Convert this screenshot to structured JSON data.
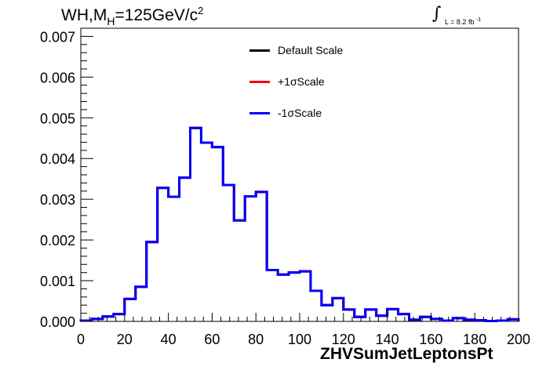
{
  "chart_data": {
    "type": "line",
    "title_main": "WH,M",
    "title_sub": "H",
    "title_mid": "=125GeV/c",
    "title_sup": "2",
    "lumi_text": "L = 8.2 fb",
    "lumi_sup": "-1",
    "xlabel": "ZHVSumJetLeptonsPt",
    "ylabel": "",
    "xlim": [
      0,
      200
    ],
    "ylim": [
      0,
      0.0072
    ],
    "xticks": [
      "0",
      "20",
      "40",
      "60",
      "80",
      "100",
      "120",
      "140",
      "160",
      "180",
      "200"
    ],
    "yticks": [
      "0.000",
      "0.001",
      "0.002",
      "0.003",
      "0.004",
      "0.005",
      "0.006",
      "0.007"
    ],
    "bin_edges": [
      0,
      5,
      10,
      15,
      20,
      25,
      30,
      35,
      40,
      45,
      50,
      55,
      60,
      65,
      70,
      75,
      80,
      85,
      90,
      95,
      100,
      105,
      110,
      115,
      120,
      125,
      130,
      135,
      140,
      145,
      150,
      155,
      160,
      165,
      170,
      175,
      180,
      185,
      190,
      195,
      200
    ],
    "series": [
      {
        "name": "Default Scale",
        "color": "#000000",
        "values": [
          2e-05,
          6e-05,
          0.00012,
          0.00018,
          0.00055,
          0.00085,
          0.00195,
          0.00328,
          0.00306,
          0.00353,
          0.00475,
          0.00439,
          0.00428,
          0.00335,
          0.00248,
          0.00307,
          0.00318,
          0.00126,
          0.00115,
          0.0012,
          0.00123,
          0.00075,
          0.0004,
          0.00057,
          0.00029,
          0.00011,
          0.00029,
          0.00014,
          0.0003,
          0.00018,
          4e-05,
          0.00011,
          6e-05,
          2e-05,
          8e-05,
          4e-05,
          3e-05,
          1e-05,
          2e-05,
          5e-05
        ]
      },
      {
        "name": "+1σScale",
        "color": "#ff0000",
        "values": [
          2e-05,
          6e-05,
          0.00012,
          0.00018,
          0.00055,
          0.00085,
          0.00195,
          0.00328,
          0.00306,
          0.00353,
          0.00475,
          0.00439,
          0.00428,
          0.00335,
          0.00248,
          0.00307,
          0.00318,
          0.00126,
          0.00115,
          0.0012,
          0.00123,
          0.00075,
          0.0004,
          0.00057,
          0.00029,
          0.00011,
          0.00029,
          0.00014,
          0.0003,
          0.00018,
          4e-05,
          0.00011,
          6e-05,
          2e-05,
          8e-05,
          4e-05,
          3e-05,
          1e-05,
          2e-05,
          5e-05
        ]
      },
      {
        "name": "-1σScale",
        "color": "#0000ff",
        "values": [
          2e-05,
          6e-05,
          0.00012,
          0.00018,
          0.00055,
          0.00085,
          0.00195,
          0.00328,
          0.00306,
          0.00353,
          0.00475,
          0.00439,
          0.00428,
          0.00335,
          0.00248,
          0.00307,
          0.00318,
          0.00126,
          0.00115,
          0.0012,
          0.00123,
          0.00075,
          0.0004,
          0.00057,
          0.00029,
          0.00011,
          0.00029,
          0.00014,
          0.0003,
          0.00018,
          4e-05,
          0.00011,
          6e-05,
          2e-05,
          8e-05,
          4e-05,
          3e-05,
          1e-05,
          2e-05,
          5e-05
        ]
      }
    ],
    "legend_position": "top-center",
    "grid": false
  }
}
